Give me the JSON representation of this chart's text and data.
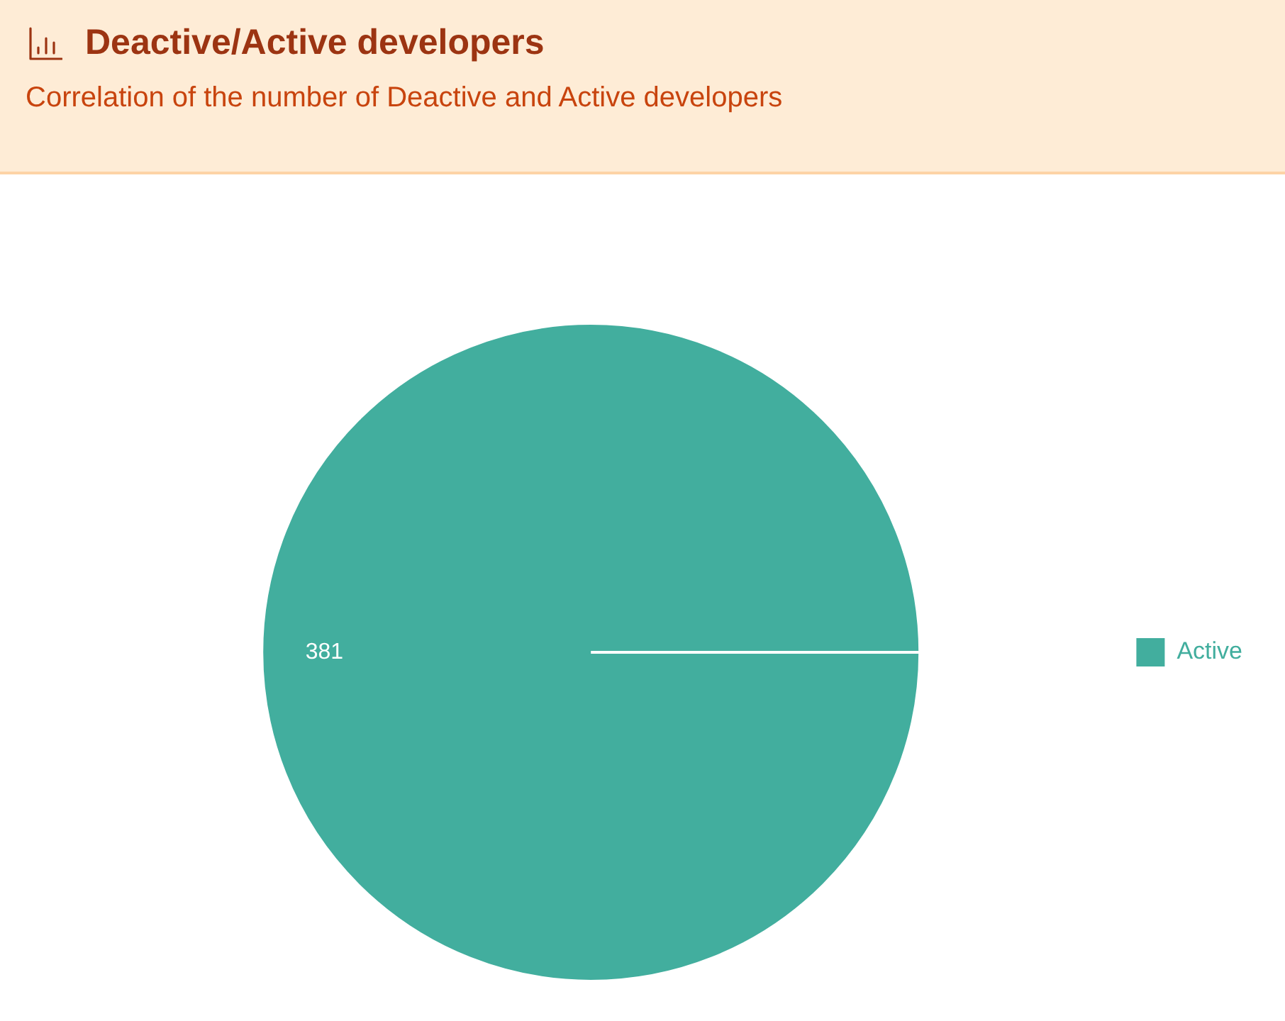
{
  "chart_data": {
    "type": "pie",
    "title": "Deactive/Active developers",
    "subtitle": "Correlation of the number of Deactive and Active developers",
    "categories": [
      "Active"
    ],
    "values": [
      381
    ],
    "colors": [
      "#42ae9e"
    ],
    "data_labels": true,
    "legend": "right"
  }
}
